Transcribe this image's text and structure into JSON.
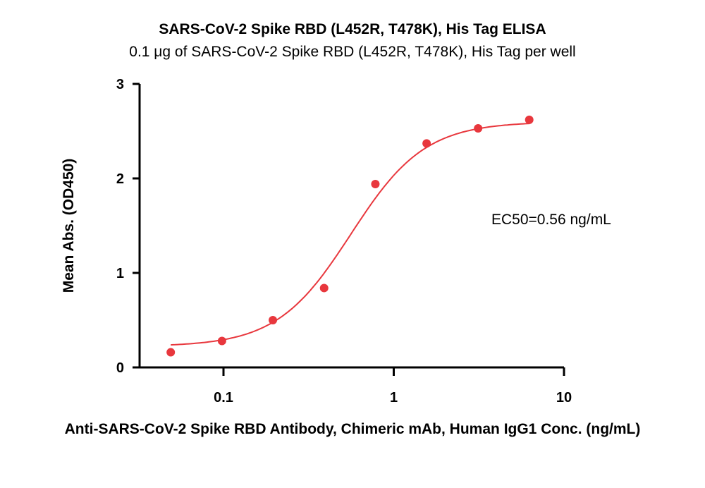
{
  "chart_data": {
    "type": "scatter",
    "title": "SARS-CoV-2 Spike RBD (L452R, T478K), His Tag ELISA",
    "subtitle": "0.1 μg of SARS-CoV-2 Spike RBD (L452R, T478K), His Tag per well",
    "xlabel": "Anti-SARS-CoV-2 Spike RBD Antibody, Chimeric mAb, Human IgG1 Conc. (ng/mL)",
    "ylabel": "Mean Abs. (OD450)",
    "xscale": "log",
    "xlim": [
      0.04,
      10
    ],
    "ylim": [
      0,
      3
    ],
    "xticks": [
      {
        "value": 0.1,
        "label": "0.1"
      },
      {
        "value": 1,
        "label": "1"
      },
      {
        "value": 10,
        "label": "10"
      }
    ],
    "yticks": [
      {
        "value": 0,
        "label": "0"
      },
      {
        "value": 1,
        "label": "1"
      },
      {
        "value": 2,
        "label": "2"
      },
      {
        "value": 3,
        "label": "3"
      }
    ],
    "series": [
      {
        "x": [
          0.049,
          0.098,
          0.195,
          0.39,
          0.78,
          1.56,
          3.13,
          6.25
        ],
        "y": [
          0.16,
          0.28,
          0.5,
          0.84,
          1.94,
          2.37,
          2.53,
          2.62
        ]
      }
    ],
    "fit": {
      "bottom": 0.22,
      "top": 2.6,
      "ec50": 0.56,
      "hill": 2.0
    },
    "annotation": "EC50=0.56 ng/mL",
    "point_color": "#e8373d",
    "curve_color": "#e8373d",
    "grid": false,
    "legend": "none"
  }
}
